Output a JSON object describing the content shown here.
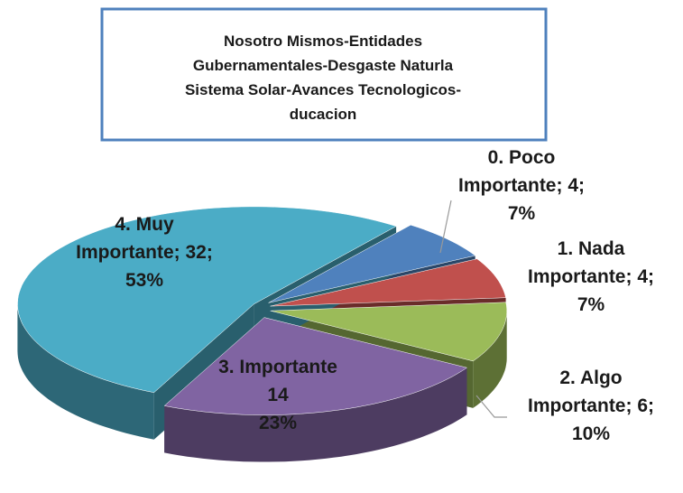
{
  "chart_data": {
    "type": "pie",
    "title": [
      "Nosotro Mismos-Entidades",
      "Gubernamentales-Desgaste Naturla",
      "Sistema Solar-Avances Tecnologicos-",
      "ducacion"
    ],
    "categories": [
      "0. Poco Importante",
      "1. Nada Importante",
      "2. Algo Importante",
      "3. Importante",
      "4. Muy Importante"
    ],
    "values": [
      4,
      4,
      6,
      14,
      32
    ],
    "value_labels": [
      [
        "0. Poco",
        "Importante; 4;",
        "7%"
      ],
      [
        "1. Nada",
        "Importante; 4;",
        "7%"
      ],
      [
        "2. Algo",
        "Importante; 6;",
        "10%"
      ],
      [
        "3. Importante",
        "14",
        "23%"
      ],
      [
        "4. Muy",
        "Importante; 32;",
        "53%"
      ]
    ],
    "colors": [
      "#4f81bd",
      "#c0504d",
      "#9bbb59",
      "#8064a2",
      "#4bacc6"
    ],
    "three_d": true,
    "exploded": true
  }
}
